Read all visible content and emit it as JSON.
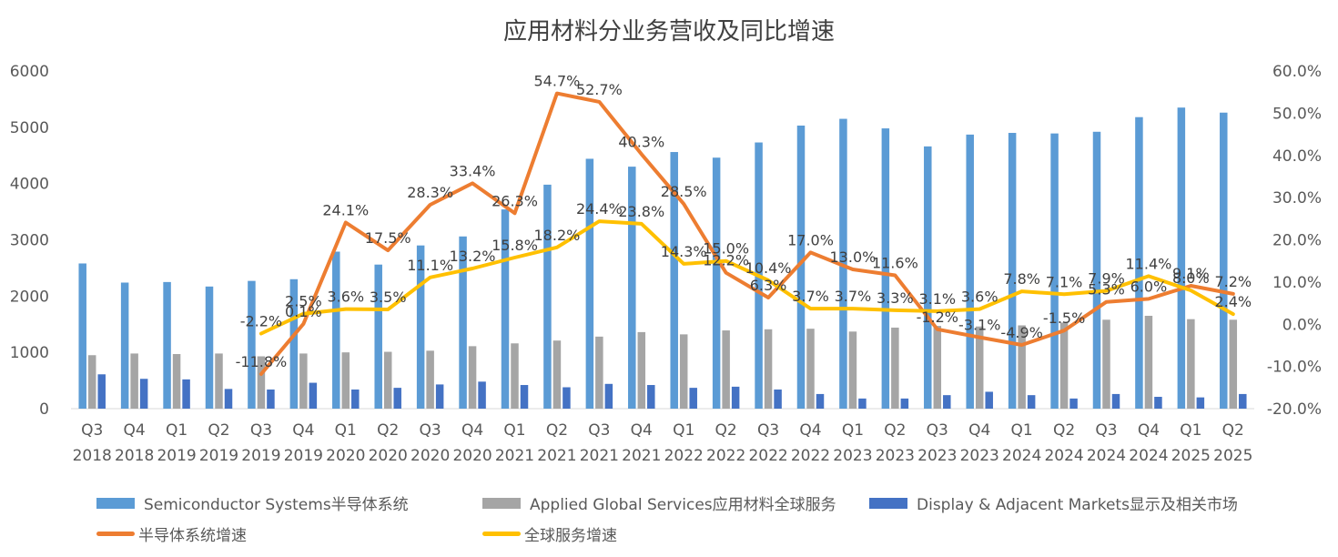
{
  "chart_data": {
    "type": "bar",
    "title": "应用材料分业务营收及同比增速",
    "categories": [
      "Q3\n2018",
      "Q4\n2018",
      "Q1\n2019",
      "Q2\n2019",
      "Q3\n2019",
      "Q4\n2019",
      "Q1\n2020",
      "Q2\n2020",
      "Q3\n2020",
      "Q4\n2020",
      "Q1\n2021",
      "Q2\n2021",
      "Q3\n2021",
      "Q4\n2021",
      "Q1\n2022",
      "Q2\n2022",
      "Q3\n2022",
      "Q4\n2022",
      "Q1\n2023",
      "Q2\n2023",
      "Q3\n2023",
      "Q4\n2023",
      "Q1\n2024",
      "Q2\n2024",
      "Q3\n2024",
      "Q4\n2024",
      "Q1\n2025",
      "Q2\n2025"
    ],
    "y_left": {
      "ylim": [
        0,
        6000
      ],
      "ticks": [
        "0",
        "1000",
        "2000",
        "3000",
        "4000",
        "5000",
        "6000"
      ]
    },
    "y_right": {
      "ylim": [
        -0.2,
        0.6
      ],
      "ticks": [
        "-20.0%",
        "-10.0%",
        "0.0%",
        "10.0%",
        "20.0%",
        "30.0%",
        "40.0%",
        "50.0%",
        "60.0%"
      ]
    },
    "series": [
      {
        "name": "Semiconductor Systems半导体系统",
        "type": "bar",
        "axis": "left",
        "color": "#5B9BD5",
        "values": [
          2580,
          2240,
          2250,
          2170,
          2270,
          2300,
          2790,
          2560,
          2900,
          3060,
          3540,
          3980,
          4440,
          4300,
          4560,
          4460,
          4730,
          5030,
          5150,
          4980,
          4660,
          4870,
          4900,
          4890,
          4920,
          5180,
          5350,
          5260
        ]
      },
      {
        "name": "Applied Global Services应用材料全球服务",
        "type": "bar",
        "axis": "left",
        "color": "#A5A5A5",
        "values": [
          950,
          980,
          970,
          980,
          930,
          980,
          1000,
          1010,
          1030,
          1110,
          1160,
          1210,
          1280,
          1360,
          1320,
          1390,
          1410,
          1420,
          1370,
          1440,
          1470,
          1460,
          1480,
          1530,
          1580,
          1650,
          1590,
          1580
        ]
      },
      {
        "name": "Display & Adjacent Markets显示及相关市场",
        "type": "bar",
        "axis": "left",
        "color": "#4472C4",
        "values": [
          610,
          530,
          520,
          350,
          340,
          460,
          340,
          370,
          430,
          480,
          420,
          380,
          440,
          420,
          370,
          390,
          340,
          260,
          180,
          180,
          240,
          300,
          240,
          180,
          260,
          210,
          200,
          260
        ]
      },
      {
        "name": "半导体系统增速",
        "type": "line",
        "axis": "right",
        "color": "#ED7D31",
        "values": [
          null,
          null,
          null,
          null,
          -0.118,
          0.001,
          0.241,
          0.175,
          0.283,
          0.334,
          0.263,
          0.547,
          0.527,
          0.403,
          0.285,
          0.122,
          0.063,
          0.17,
          0.13,
          0.116,
          -0.012,
          -0.031,
          -0.049,
          -0.015,
          0.053,
          0.06,
          0.091,
          0.072
        ],
        "labels": [
          "",
          "",
          "",
          "",
          "-11.8%",
          "0.1%",
          "24.1%",
          "17.5%",
          "28.3%",
          "33.4%",
          "26.3%",
          "54.7%",
          "52.7%",
          "40.3%",
          "28.5%",
          "12.2%",
          "6.3%",
          "17.0%",
          "13.0%",
          "11.6%",
          "-1.2%",
          "-3.1%",
          "-4.9%",
          "-1.5%",
          "5.3%",
          "6.0%",
          "9.1%",
          "7.2%"
        ]
      },
      {
        "name": "全球服务增速",
        "type": "line",
        "axis": "right",
        "color": "#FFC000",
        "values": [
          null,
          null,
          null,
          null,
          -0.022,
          0.025,
          0.036,
          0.035,
          0.111,
          0.132,
          0.158,
          0.182,
          0.244,
          0.238,
          0.143,
          0.15,
          0.104,
          0.037,
          0.037,
          0.033,
          0.031,
          0.036,
          0.078,
          0.071,
          0.079,
          0.114,
          0.08,
          0.024
        ],
        "labels": [
          "",
          "",
          "",
          "",
          "-2.2%",
          "2.5%",
          "3.6%",
          "3.5%",
          "11.1%",
          "13.2%",
          "15.8%",
          "18.2%",
          "24.4%",
          "23.8%",
          "14.3%",
          "15.0%",
          "10.4%",
          "3.7%",
          "3.7%",
          "3.3%",
          "3.1%",
          "3.6%",
          "7.8%",
          "7.1%",
          "7.9%",
          "11.4%",
          "8.0%",
          "2.4%"
        ]
      }
    ],
    "legend_position": "bottom",
    "grid": false
  }
}
